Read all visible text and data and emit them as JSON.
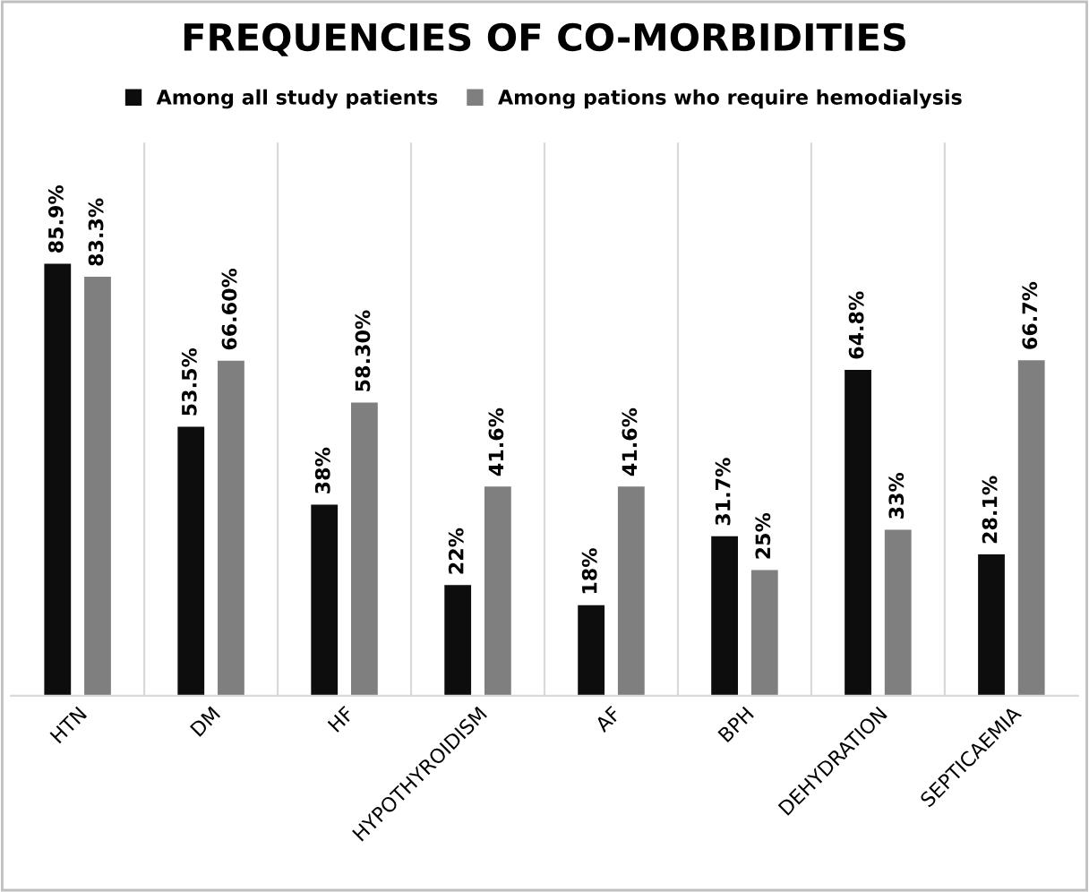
{
  "chart_data": {
    "type": "bar",
    "title": "FREQUENCIES OF CO-MORBIDITIES",
    "categories": [
      "HTN",
      "DM",
      "HF",
      "HYPOTHYROIDISM",
      "AF",
      "BPH",
      "DEHYDRATION",
      "SEPTICAEMIA"
    ],
    "series": [
      {
        "name": "Among all study patients",
        "color": "#0d0d0d",
        "values": [
          85.9,
          53.5,
          38,
          22,
          18,
          31.7,
          64.8,
          28.1
        ],
        "value_labels": [
          "85.9%",
          "53.5%",
          "38%",
          "22%",
          "18%",
          "31.7%",
          "64.8%",
          "28.1%"
        ]
      },
      {
        "name": "Among pations who require hemodialysis",
        "color": "#7f7f7f",
        "values": [
          83.3,
          66.6,
          58.3,
          41.6,
          41.6,
          25,
          33,
          66.7
        ],
        "value_labels": [
          "83.3%",
          "66.60%",
          "58.30%",
          "41.6%",
          "41.6%",
          "25%",
          "33%",
          "66.7%"
        ]
      }
    ],
    "grid": "x",
    "legend": "top"
  }
}
